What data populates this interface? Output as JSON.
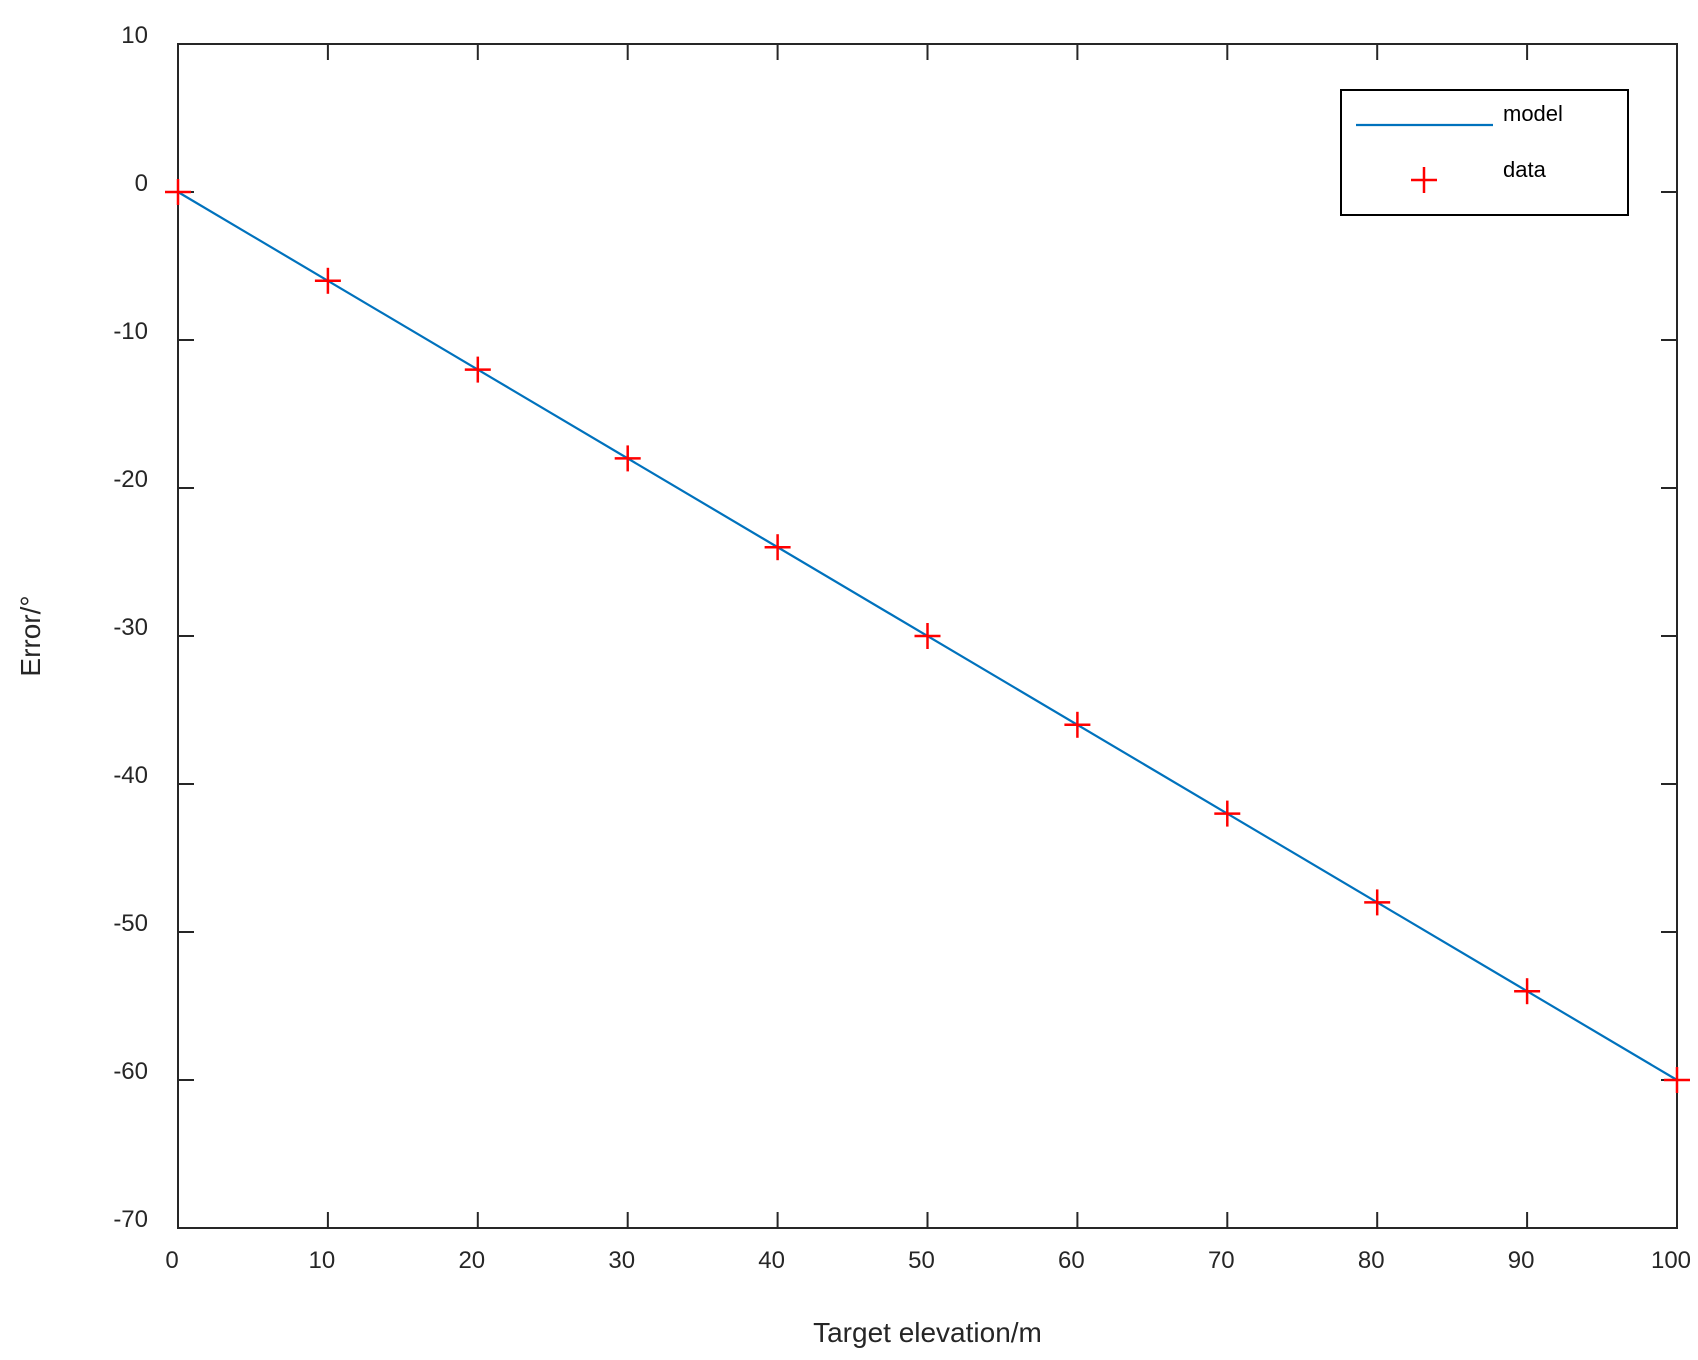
{
  "chart_data": {
    "type": "line",
    "xlabel": "Target elevation/m",
    "ylabel": "Error/°",
    "xlim": [
      0,
      100
    ],
    "ylim": [
      -70,
      10
    ],
    "xticks": [
      0,
      10,
      20,
      30,
      40,
      50,
      60,
      70,
      80,
      90,
      100
    ],
    "yticks": [
      10,
      0,
      -10,
      -20,
      -30,
      -40,
      -50,
      -60,
      -70
    ],
    "legend_position": "top-right",
    "grid": false,
    "series": [
      {
        "name": "model",
        "style": "line",
        "color": "#0072BD",
        "x": [
          0,
          100
        ],
        "y": [
          0,
          -60
        ]
      },
      {
        "name": "data",
        "style": "marker-plus",
        "color": "#FF0000",
        "x": [
          0,
          10,
          20,
          30,
          40,
          50,
          60,
          70,
          80,
          90,
          100
        ],
        "y": [
          0,
          -6,
          -12,
          -18,
          -24,
          -30,
          -36,
          -42,
          -48,
          -54,
          -60
        ]
      }
    ]
  }
}
